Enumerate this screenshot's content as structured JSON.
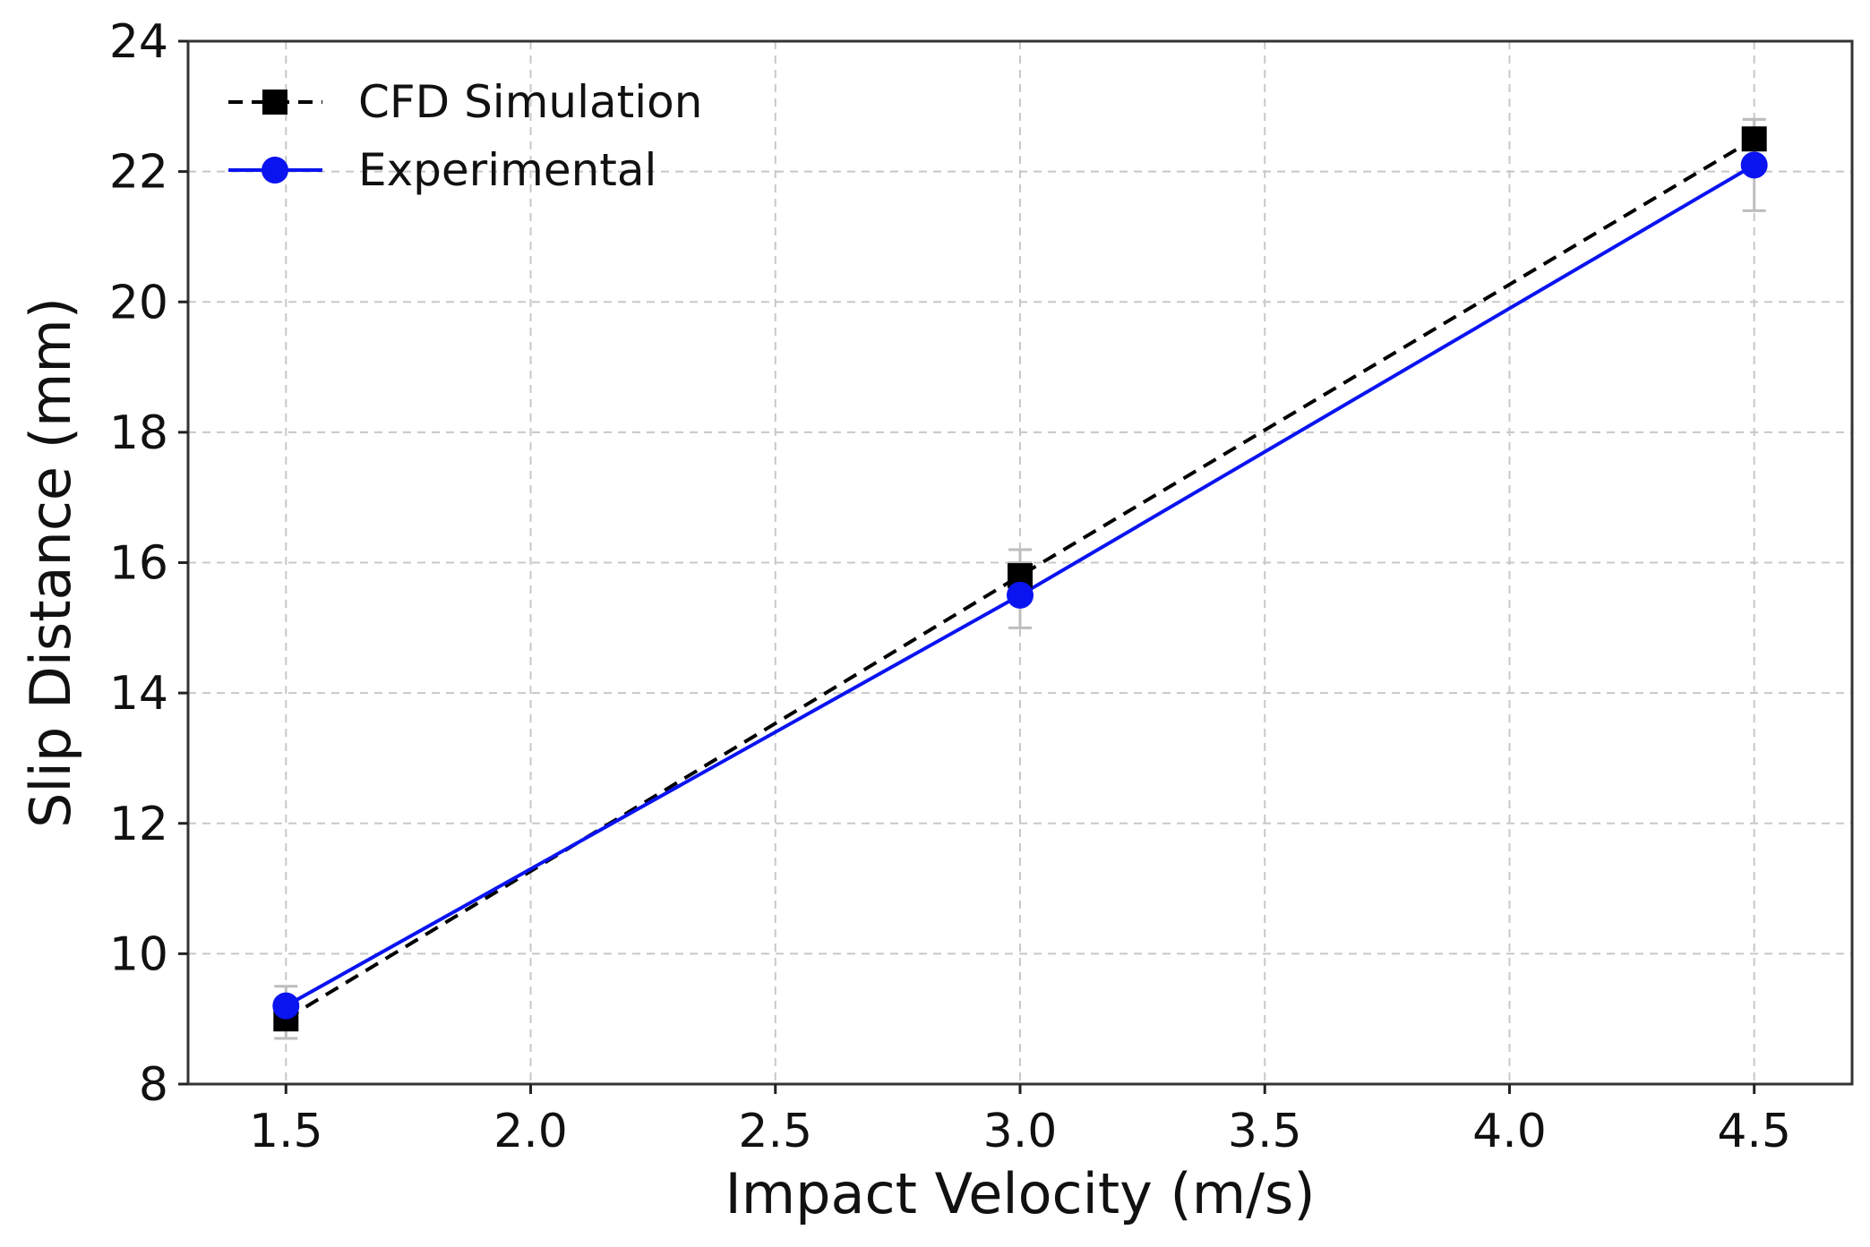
{
  "chart_data": {
    "type": "line",
    "title": "",
    "xlabel": "Impact Velocity (m/s)",
    "ylabel": "Slip Distance (mm)",
    "xlim": [
      1.3,
      4.7
    ],
    "ylim": [
      8,
      24
    ],
    "xticks": [
      1.5,
      2.0,
      2.5,
      3.0,
      3.5,
      4.0,
      4.5
    ],
    "xtick_labels": [
      "1.5",
      "2.0",
      "2.5",
      "3.0",
      "3.5",
      "4.0",
      "4.5"
    ],
    "yticks": [
      8,
      10,
      12,
      14,
      16,
      18,
      20,
      22,
      24
    ],
    "ytick_labels": [
      "8",
      "10",
      "12",
      "14",
      "16",
      "18",
      "20",
      "22",
      "24"
    ],
    "grid": true,
    "legend_position": "top-left",
    "series": [
      {
        "name": "CFD Simulation",
        "style": "dashed",
        "marker": "square",
        "color": "#000000",
        "x": [
          1.5,
          3.0,
          4.5
        ],
        "values": [
          9.0,
          15.8,
          22.5
        ],
        "error": [
          0.3,
          0.4,
          0.3
        ]
      },
      {
        "name": "Experimental",
        "style": "solid",
        "marker": "circle",
        "color": "#0a14f0",
        "x": [
          1.5,
          3.0,
          4.5
        ],
        "values": [
          9.2,
          15.5,
          22.1
        ],
        "error": [
          0.3,
          0.5,
          0.7
        ]
      }
    ]
  }
}
